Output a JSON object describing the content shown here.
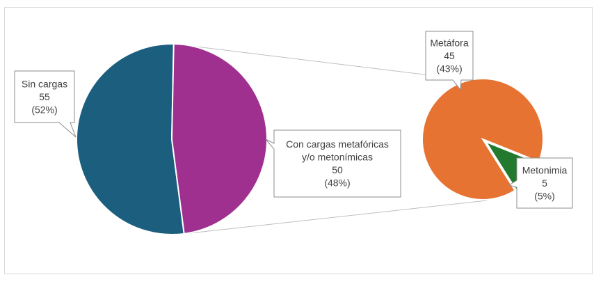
{
  "chart_data": {
    "type": "pie",
    "subtype": "pie-of-pie",
    "main_pie": {
      "slices": [
        {
          "label": "Sin cargas",
          "value": 55,
          "percent": "52%",
          "color": "#1b5e7e"
        },
        {
          "label": "Con cargas metafóricas y/o metonímicas",
          "value": 50,
          "percent": "48%",
          "color": "#a0308f"
        }
      ]
    },
    "secondary_pie": {
      "slices": [
        {
          "label": "Metáfora",
          "value": 45,
          "percent": "43%",
          "color": "#e77332"
        },
        {
          "label": "Metonimia",
          "value": 5,
          "percent": "5%",
          "color": "#237a2e"
        }
      ]
    },
    "connector_color": "#bfbfbf",
    "callouts": {
      "sin_cargas": [
        "Sin cargas",
        "55",
        "(52%)"
      ],
      "con_cargas": [
        "Con cargas metafóricas",
        "y/o metonímicas",
        "50",
        "(48%)"
      ],
      "metafora": [
        "Metáfora",
        "45",
        "(43%)"
      ],
      "metonimia": [
        "Metonimia",
        "5",
        "(5%)"
      ]
    }
  }
}
